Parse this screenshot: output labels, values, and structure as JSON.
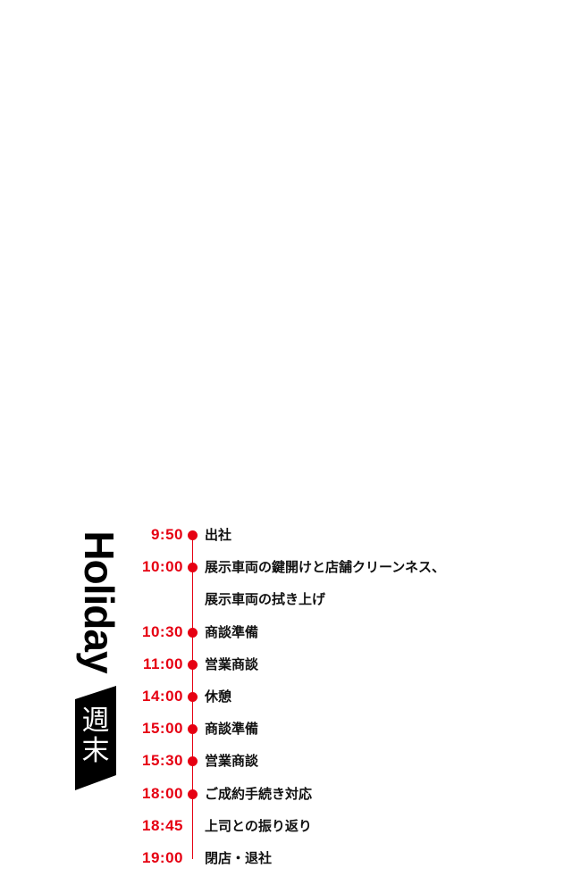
{
  "heading": {
    "en": "Holiday",
    "ja": "週末"
  },
  "colors": {
    "accent": "#e60012",
    "banner": "#000000"
  },
  "schedule": [
    {
      "time": "9:50",
      "label": "出社",
      "dot": true
    },
    {
      "time": "10:00",
      "label": "展示車両の鍵開けと店舗クリーンネス、",
      "dot": true
    },
    {
      "time": "",
      "label": "展示車両の拭き上げ",
      "dot": false
    },
    {
      "time": "10:30",
      "label": "商談準備",
      "dot": true
    },
    {
      "time": "11:00",
      "label": "営業商談",
      "dot": true
    },
    {
      "time": "14:00",
      "label": "休憩",
      "dot": true
    },
    {
      "time": "15:00",
      "label": "商談準備",
      "dot": true
    },
    {
      "time": "15:30",
      "label": "営業商談",
      "dot": true
    },
    {
      "time": "18:00",
      "label": "ご成約手続き対応",
      "dot": true
    },
    {
      "time": "18:45",
      "label": "上司との振り返り",
      "dot": false
    },
    {
      "time": "19:00",
      "label": "閉店・退社",
      "dot": false
    }
  ]
}
